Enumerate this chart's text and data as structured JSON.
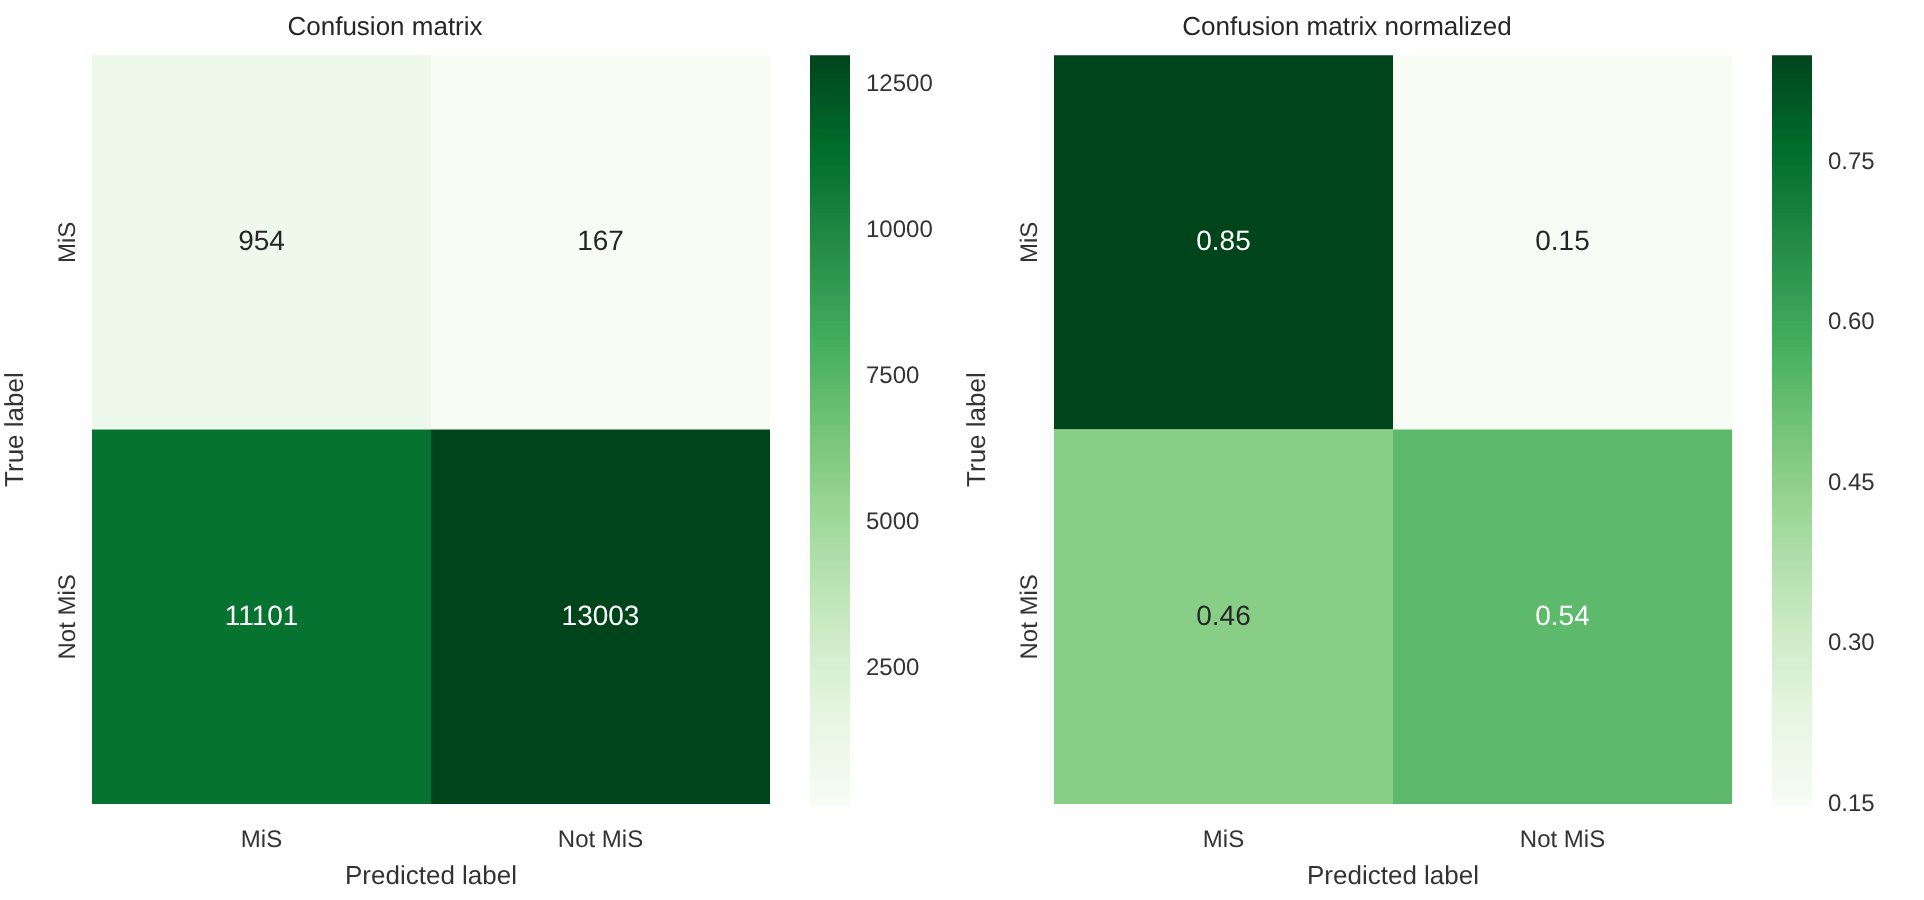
{
  "chart_data": [
    {
      "type": "heatmap",
      "title": "Confusion matrix",
      "xlabel": "Predicted label",
      "ylabel": "True label",
      "categories": [
        "MiS",
        "Not MiS"
      ],
      "y_categories": [
        "MiS",
        "Not MiS"
      ],
      "cells": [
        [
          954,
          167
        ],
        [
          11101,
          13003
        ]
      ],
      "clim": [
        167,
        13003
      ],
      "cticks": [
        2500,
        5000,
        7500,
        10000,
        12500
      ],
      "data_labels": true
    },
    {
      "type": "heatmap",
      "title": "Confusion matrix normalized",
      "xlabel": "Predicted label",
      "ylabel": "True label",
      "categories": [
        "MiS",
        "Not MiS"
      ],
      "y_categories": [
        "MiS",
        "Not MiS"
      ],
      "cells": [
        [
          0.85,
          0.15
        ],
        [
          0.46,
          0.54
        ]
      ],
      "clim": [
        0.15,
        0.85
      ],
      "cticks": [
        0.15,
        {
          "value": 0.3,
          "label": "0.30"
        },
        0.45,
        {
          "value": 0.6,
          "label": "0.60"
        },
        0.75
      ],
      "data_labels": true
    }
  ]
}
